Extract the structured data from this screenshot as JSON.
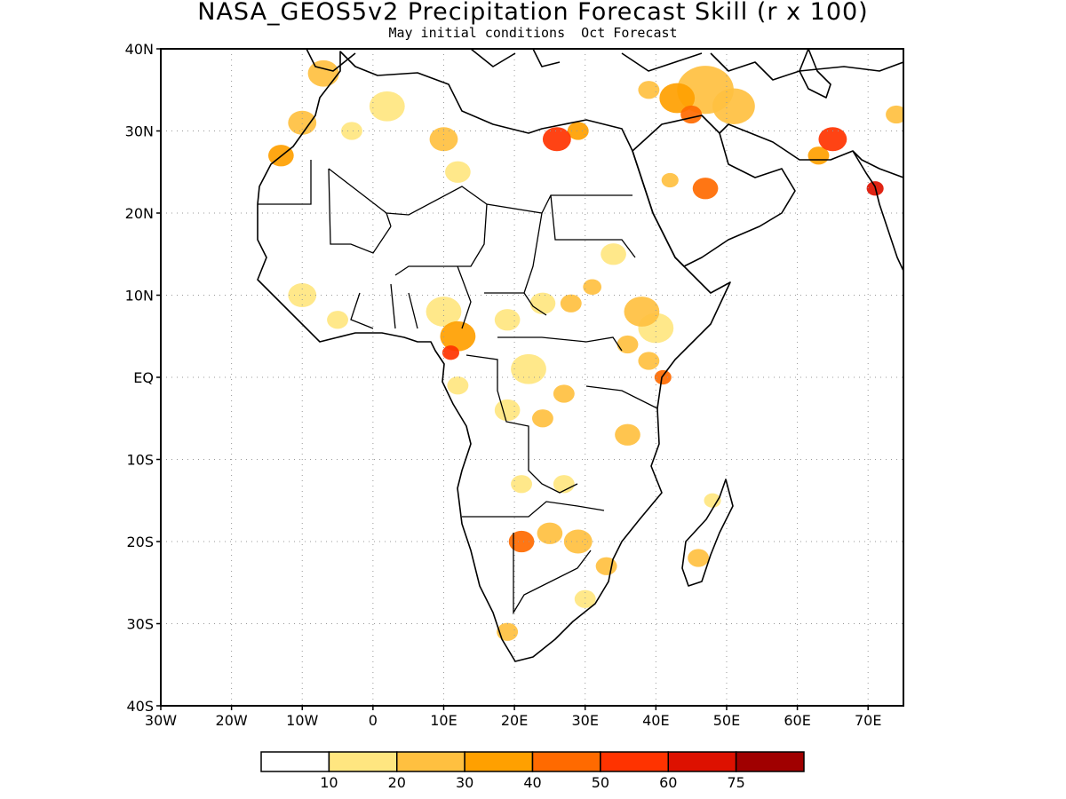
{
  "header": {
    "title": "NASA_GEOS5v2 Precipitation Forecast Skill (r x 100)",
    "subtitle": "May initial conditions  Oct Forecast"
  },
  "map": {
    "lon_range": [
      -30,
      75
    ],
    "lat_range": [
      -40,
      40
    ],
    "lat_labels": [
      {
        "lat": 40,
        "label": "40N"
      },
      {
        "lat": 30,
        "label": "30N"
      },
      {
        "lat": 20,
        "label": "20N"
      },
      {
        "lat": 10,
        "label": "10N"
      },
      {
        "lat": 0,
        "label": "EQ"
      },
      {
        "lat": -10,
        "label": "10S"
      },
      {
        "lat": -20,
        "label": "20S"
      },
      {
        "lat": -30,
        "label": "30S"
      },
      {
        "lat": -40,
        "label": "40S"
      }
    ],
    "lon_labels": [
      {
        "lon": -30,
        "label": "30W"
      },
      {
        "lon": -20,
        "label": "20W"
      },
      {
        "lon": -10,
        "label": "10W"
      },
      {
        "lon": 0,
        "label": "0"
      },
      {
        "lon": 10,
        "label": "10E"
      },
      {
        "lon": 20,
        "label": "20E"
      },
      {
        "lon": 30,
        "label": "30E"
      },
      {
        "lon": 40,
        "label": "40E"
      },
      {
        "lon": 50,
        "label": "50E"
      },
      {
        "lon": 60,
        "label": "60E"
      },
      {
        "lon": 70,
        "label": "70E"
      }
    ],
    "grid": "dotted"
  },
  "legend": {
    "colors": [
      "#ffffff",
      "#ffe680",
      "#ffc040",
      "#ffa000",
      "#ff6a00",
      "#ff3300",
      "#dd1100",
      "#a00000"
    ],
    "labels": [
      "10",
      "20",
      "30",
      "40",
      "50",
      "60",
      "75"
    ]
  },
  "skill_patches": [
    {
      "lon": -7,
      "lat": 37,
      "r": 2.2,
      "level": 2
    },
    {
      "lon": 2,
      "lat": 33,
      "r": 2.5,
      "level": 1
    },
    {
      "lon": -10,
      "lat": 31,
      "r": 2.0,
      "level": 2
    },
    {
      "lon": -13,
      "lat": 27,
      "r": 1.8,
      "level": 3
    },
    {
      "lon": -3,
      "lat": 30,
      "r": 1.5,
      "level": 1
    },
    {
      "lon": 10,
      "lat": 29,
      "r": 2.0,
      "level": 2
    },
    {
      "lon": 12,
      "lat": 25,
      "r": 1.8,
      "level": 1
    },
    {
      "lon": 26,
      "lat": 29,
      "r": 2.0,
      "level": 5
    },
    {
      "lon": 29,
      "lat": 30,
      "r": 1.5,
      "level": 3
    },
    {
      "lon": 43,
      "lat": 34,
      "r": 2.5,
      "level": 3
    },
    {
      "lon": 47,
      "lat": 35,
      "r": 4.0,
      "level": 2
    },
    {
      "lon": 51,
      "lat": 33,
      "r": 3.0,
      "level": 2
    },
    {
      "lon": 45,
      "lat": 32,
      "r": 1.5,
      "level": 4
    },
    {
      "lon": 39,
      "lat": 35,
      "r": 1.5,
      "level": 2
    },
    {
      "lon": 47,
      "lat": 23,
      "r": 1.8,
      "level": 4
    },
    {
      "lon": 42,
      "lat": 24,
      "r": 1.2,
      "level": 2
    },
    {
      "lon": 65,
      "lat": 29,
      "r": 2.0,
      "level": 5
    },
    {
      "lon": 63,
      "lat": 27,
      "r": 1.5,
      "level": 3
    },
    {
      "lon": 71,
      "lat": 23,
      "r": 1.2,
      "level": 6
    },
    {
      "lon": 74,
      "lat": 32,
      "r": 1.5,
      "level": 2
    },
    {
      "lon": -10,
      "lat": 10,
      "r": 2.0,
      "level": 1
    },
    {
      "lon": -5,
      "lat": 7,
      "r": 1.5,
      "level": 1
    },
    {
      "lon": 10,
      "lat": 8,
      "r": 2.5,
      "level": 1
    },
    {
      "lon": 12,
      "lat": 5,
      "r": 2.5,
      "level": 3
    },
    {
      "lon": 11,
      "lat": 3,
      "r": 1.2,
      "level": 5
    },
    {
      "lon": 19,
      "lat": 7,
      "r": 1.8,
      "level": 1
    },
    {
      "lon": 24,
      "lat": 9,
      "r": 1.8,
      "level": 1
    },
    {
      "lon": 28,
      "lat": 9,
      "r": 1.5,
      "level": 2
    },
    {
      "lon": 34,
      "lat": 15,
      "r": 1.8,
      "level": 1
    },
    {
      "lon": 31,
      "lat": 11,
      "r": 1.3,
      "level": 2
    },
    {
      "lon": 38,
      "lat": 8,
      "r": 2.5,
      "level": 2
    },
    {
      "lon": 40,
      "lat": 6,
      "r": 2.5,
      "level": 1
    },
    {
      "lon": 36,
      "lat": 4,
      "r": 1.5,
      "level": 2
    },
    {
      "lon": 41,
      "lat": 0,
      "r": 1.2,
      "level": 4
    },
    {
      "lon": 39,
      "lat": 2,
      "r": 1.5,
      "level": 2
    },
    {
      "lon": 22,
      "lat": 1,
      "r": 2.5,
      "level": 1
    },
    {
      "lon": 27,
      "lat": -2,
      "r": 1.5,
      "level": 2
    },
    {
      "lon": 19,
      "lat": -4,
      "r": 1.8,
      "level": 1
    },
    {
      "lon": 24,
      "lat": -5,
      "r": 1.5,
      "level": 2
    },
    {
      "lon": 36,
      "lat": -7,
      "r": 1.8,
      "level": 2
    },
    {
      "lon": 12,
      "lat": -1,
      "r": 1.5,
      "level": 1
    },
    {
      "lon": 21,
      "lat": -13,
      "r": 1.5,
      "level": 1
    },
    {
      "lon": 27,
      "lat": -13,
      "r": 1.5,
      "level": 1
    },
    {
      "lon": 21,
      "lat": -20,
      "r": 1.8,
      "level": 4
    },
    {
      "lon": 25,
      "lat": -19,
      "r": 1.8,
      "level": 2
    },
    {
      "lon": 29,
      "lat": -20,
      "r": 2.0,
      "level": 2
    },
    {
      "lon": 33,
      "lat": -23,
      "r": 1.5,
      "level": 2
    },
    {
      "lon": 46,
      "lat": -22,
      "r": 1.5,
      "level": 2
    },
    {
      "lon": 48,
      "lat": -15,
      "r": 1.2,
      "level": 1
    },
    {
      "lon": 19,
      "lat": -31,
      "r": 1.5,
      "level": 2
    },
    {
      "lon": 30,
      "lat": -27,
      "r": 1.5,
      "level": 1
    }
  ]
}
